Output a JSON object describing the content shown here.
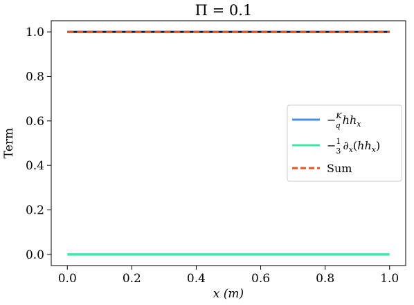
{
  "chart_data": {
    "type": "line",
    "title": "Π = 0.1",
    "xlabel": "x (m)",
    "ylabel": "Term",
    "xlim": [
      -0.05,
      1.05
    ],
    "ylim": [
      -0.05,
      1.05
    ],
    "xticks": [
      0.0,
      0.2,
      0.4,
      0.6,
      0.8,
      1.0
    ],
    "xtick_labels": [
      "0.0",
      "0.2",
      "0.4",
      "0.6",
      "0.8",
      "1.0"
    ],
    "yticks": [
      0.0,
      0.2,
      0.4,
      0.6,
      0.8,
      1.0
    ],
    "ytick_labels": [
      "0.0",
      "0.2",
      "0.4",
      "0.6",
      "0.8",
      "1.0"
    ],
    "grid": false,
    "legend_position": "center-right",
    "series": [
      {
        "name": "−(K/q) h hₓ",
        "color": "#4a8ee8",
        "style": "solid",
        "x": [
          0.0,
          0.2,
          0.4,
          0.6,
          0.8,
          1.0
        ],
        "y": [
          1.0,
          1.0,
          1.0,
          1.0,
          1.0,
          1.0
        ]
      },
      {
        "name": "−(1/3) ∂ₓ(h hₓ)",
        "color": "#3de8a8",
        "style": "solid",
        "x": [
          0.0,
          0.2,
          0.4,
          0.6,
          0.8,
          1.0
        ],
        "y": [
          0.0,
          0.0,
          0.0,
          0.0,
          0.0,
          0.0
        ]
      },
      {
        "name": "Sum",
        "color": "#e8541a",
        "style": "dashed",
        "x": [
          0.0,
          0.2,
          0.4,
          0.6,
          0.8,
          1.0
        ],
        "y": [
          1.0,
          1.0,
          1.0,
          1.0,
          1.0,
          1.0
        ]
      }
    ],
    "overlay_line": {
      "color": "#111111",
      "x": [
        0.0,
        1.0
      ],
      "y": [
        1.0,
        1.0
      ]
    }
  }
}
